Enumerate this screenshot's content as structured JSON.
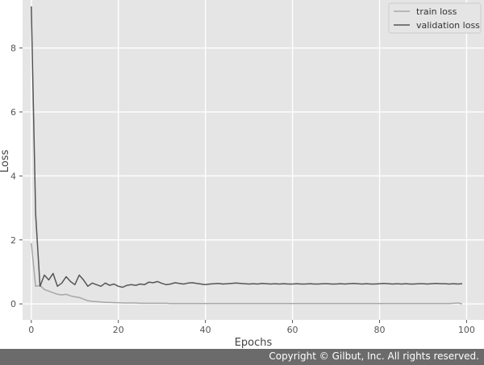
{
  "chart_data": {
    "type": "line",
    "title": "",
    "xlabel": "Epochs",
    "ylabel": "Loss",
    "xlim": [
      -2,
      104
    ],
    "ylim": [
      -0.5,
      9.5
    ],
    "xticks": [
      0,
      20,
      40,
      60,
      80,
      100
    ],
    "yticks": [
      0,
      2,
      4,
      6,
      8
    ],
    "xtick_labels": [
      "0",
      "20",
      "40",
      "60",
      "80",
      "100"
    ],
    "ytick_labels": [
      "0",
      "2",
      "4",
      "6",
      "8"
    ],
    "grid": true,
    "legend_position": "top-right",
    "x": [
      0,
      1,
      2,
      3,
      4,
      5,
      6,
      7,
      8,
      9,
      10,
      11,
      12,
      13,
      14,
      15,
      16,
      17,
      18,
      19,
      20,
      21,
      22,
      23,
      24,
      25,
      26,
      27,
      28,
      29,
      30,
      31,
      32,
      33,
      34,
      35,
      36,
      37,
      38,
      39,
      40,
      41,
      42,
      43,
      44,
      45,
      46,
      47,
      48,
      49,
      50,
      51,
      52,
      53,
      54,
      55,
      56,
      57,
      58,
      59,
      60,
      61,
      62,
      63,
      64,
      65,
      66,
      67,
      68,
      69,
      70,
      71,
      72,
      73,
      74,
      75,
      76,
      77,
      78,
      79,
      80,
      81,
      82,
      83,
      84,
      85,
      86,
      87,
      88,
      89,
      90,
      91,
      92,
      93,
      94,
      95,
      96,
      97,
      98,
      99
    ],
    "series": [
      {
        "name": "train loss",
        "color": "#a6a6a6",
        "values": [
          1.9,
          0.55,
          0.58,
          0.45,
          0.4,
          0.35,
          0.3,
          0.28,
          0.3,
          0.25,
          0.22,
          0.2,
          0.15,
          0.1,
          0.08,
          0.07,
          0.06,
          0.05,
          0.05,
          0.04,
          0.04,
          0.03,
          0.03,
          0.03,
          0.03,
          0.02,
          0.02,
          0.02,
          0.02,
          0.02,
          0.02,
          0.02,
          0.01,
          0.01,
          0.01,
          0.01,
          0.01,
          0.01,
          0.01,
          0.01,
          0.01,
          0.01,
          0.01,
          0.01,
          0.01,
          0.01,
          0.01,
          0.01,
          0.01,
          0.01,
          0.01,
          0.01,
          0.01,
          0.01,
          0.01,
          0.01,
          0.01,
          0.01,
          0.01,
          0.01,
          0.01,
          0.01,
          0.01,
          0.01,
          0.01,
          0.01,
          0.01,
          0.01,
          0.01,
          0.01,
          0.01,
          0.01,
          0.01,
          0.01,
          0.01,
          0.01,
          0.01,
          0.01,
          0.01,
          0.01,
          0.01,
          0.01,
          0.01,
          0.01,
          0.01,
          0.01,
          0.01,
          0.01,
          0.01,
          0.01,
          0.01,
          0.01,
          0.01,
          0.01,
          0.01,
          0.01,
          0.01,
          0.02,
          0.03,
          0.0
        ]
      },
      {
        "name": "validation loss",
        "color": "#555555",
        "values": [
          9.3,
          2.8,
          0.55,
          0.9,
          0.75,
          0.95,
          0.55,
          0.65,
          0.85,
          0.7,
          0.6,
          0.9,
          0.75,
          0.55,
          0.65,
          0.6,
          0.55,
          0.65,
          0.58,
          0.62,
          0.55,
          0.52,
          0.58,
          0.6,
          0.58,
          0.62,
          0.6,
          0.68,
          0.66,
          0.7,
          0.64,
          0.6,
          0.62,
          0.66,
          0.64,
          0.62,
          0.65,
          0.66,
          0.64,
          0.62,
          0.6,
          0.62,
          0.63,
          0.64,
          0.62,
          0.63,
          0.64,
          0.65,
          0.64,
          0.63,
          0.62,
          0.63,
          0.62,
          0.64,
          0.63,
          0.62,
          0.63,
          0.62,
          0.63,
          0.62,
          0.62,
          0.63,
          0.62,
          0.62,
          0.63,
          0.62,
          0.62,
          0.63,
          0.63,
          0.62,
          0.62,
          0.63,
          0.62,
          0.63,
          0.64,
          0.63,
          0.62,
          0.63,
          0.62,
          0.62,
          0.63,
          0.64,
          0.63,
          0.62,
          0.63,
          0.62,
          0.63,
          0.62,
          0.62,
          0.63,
          0.63,
          0.62,
          0.63,
          0.64,
          0.63,
          0.63,
          0.62,
          0.63,
          0.62,
          0.63
        ]
      }
    ]
  },
  "footer": {
    "copyright": "Copyright © Gilbut, Inc. All rights reserved."
  }
}
